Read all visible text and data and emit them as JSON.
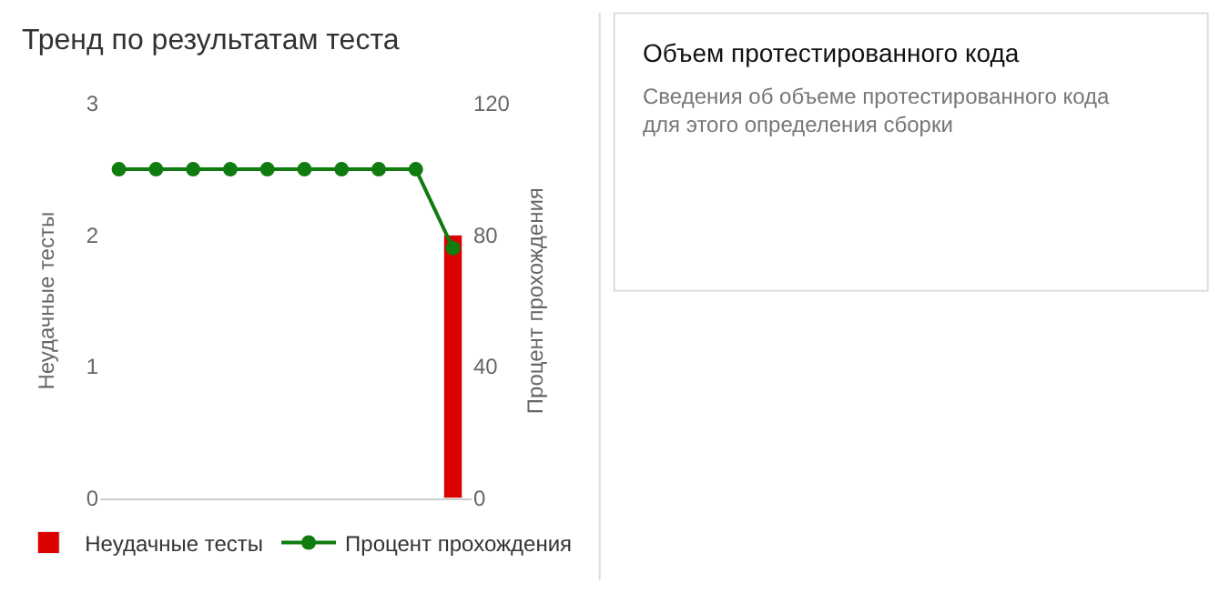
{
  "chart_data": [
    {
      "type": "bar",
      "title": "Тренд по результатам теста",
      "ylabel": "Неудачные тесты",
      "y2label": "Процент прохождения",
      "categories": [
        null,
        null,
        null,
        null,
        null,
        null,
        null,
        null,
        null,
        null
      ],
      "series": [
        {
          "name": "Неудачные тесты",
          "type": "bar",
          "color": "#dd0000",
          "values": [
            null,
            null,
            null,
            null,
            null,
            null,
            null,
            null,
            null,
            2
          ]
        },
        {
          "name": "Процент прохождения",
          "type": "line",
          "axis": "y2",
          "color": "#107c10",
          "marker": "circle",
          "values": [
            100,
            100,
            100,
            100,
            100,
            100,
            100,
            100,
            100,
            76
          ]
        }
      ],
      "ylim": [
        0,
        3
      ],
      "yticks": [
        0,
        1,
        2,
        3
      ],
      "y2lim": [
        0,
        120
      ],
      "y2ticks": [
        0,
        40,
        80,
        120
      ],
      "legend": "bottom"
    },
    {
      "type": "other",
      "title": "Объем протестированного кода",
      "subtitle": "Сведения об объеме протестированного кода для этого определения сборки"
    }
  ]
}
